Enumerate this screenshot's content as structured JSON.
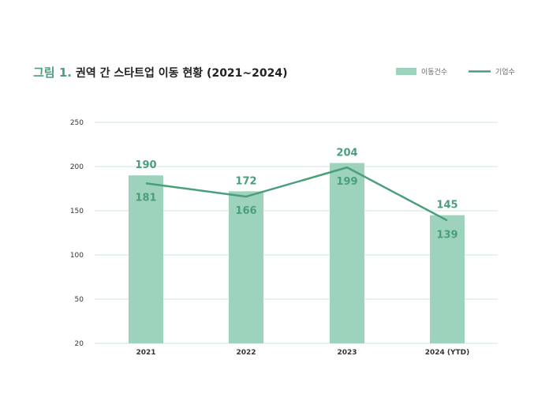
{
  "title": {
    "figure_label": "그림 1.",
    "text": "권역 간 스타트업 이동 현황 (2021~2024)"
  },
  "colors": {
    "bar": "#9dd3bd",
    "line": "#4a9e7a",
    "grid": "#cfe6dc",
    "label": "#4a9e7a"
  },
  "chart_data": {
    "type": "bar",
    "title": "권역 간 스타트업 이동 현황 (2021~2024)",
    "categories": [
      "2021",
      "2022",
      "2023",
      "2024 (YTD)"
    ],
    "series": [
      {
        "name": "이동건수",
        "type": "bar",
        "values": [
          190,
          172,
          204,
          145
        ]
      },
      {
        "name": "기업수",
        "type": "line",
        "values": [
          181,
          166,
          199,
          139
        ]
      }
    ],
    "yticks": [
      "20",
      "50",
      "100",
      "150",
      "200",
      "250"
    ],
    "ylim": [
      20,
      250
    ],
    "xlabel": "",
    "ylabel": "",
    "grid": true,
    "legend": "top-right"
  }
}
